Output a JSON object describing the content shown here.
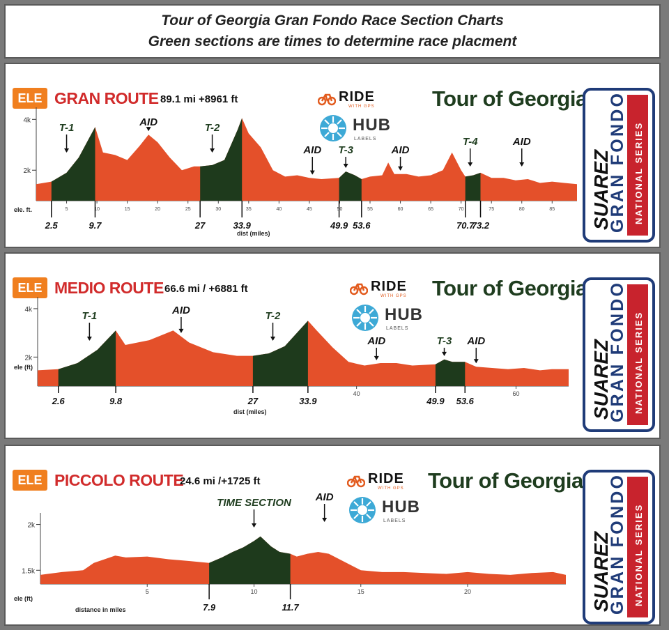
{
  "header": {
    "line1": "Tour of Georgia Gran Fondo Race Section Charts",
    "line2": "Green sections are times to determine race placment"
  },
  "colors": {
    "profile_fill": "#e4502a",
    "timed_fill": "#1e3a1c",
    "badge": "#f07f1f",
    "route_name": "#d12b2b",
    "tour_title": "#1f3d1f",
    "logo_blue": "#1f3b78",
    "logo_red": "#c8232d"
  },
  "branding": {
    "ride": "RIDE",
    "with_gps": "WITH GPS",
    "hub": "HUB",
    "labels": "LABELS",
    "logo_line1": "SUAREZ",
    "logo_line2": "GRAN FONDO",
    "logo_line3": "NATIONAL SERIES"
  },
  "chart_data": [
    {
      "type": "area",
      "title": "GRAN ROUTE",
      "badge": "ELE",
      "stats": "89.1 mi +8961 ft",
      "tour": "Tour of Georgia",
      "xlabel": "dist (miles)",
      "ylabel": "ele. ft.",
      "xlim": [
        0,
        89.1
      ],
      "ylim": [
        800,
        4200
      ],
      "yticks": [
        {
          "v": 2000,
          "t": "2k"
        },
        {
          "v": 4000,
          "t": "4k"
        }
      ],
      "xticks": [
        5,
        10,
        15,
        20,
        25,
        30,
        35,
        40,
        45,
        50,
        55,
        60,
        65,
        70,
        75,
        80,
        85
      ],
      "profile": {
        "x": [
          0,
          2.5,
          5,
          7,
          9.7,
          11,
          13,
          15,
          17,
          18.5,
          20,
          22,
          24,
          26,
          27,
          29,
          31,
          33.2,
          33.9,
          35,
          37,
          39,
          41,
          43,
          45,
          47,
          49.9,
          51,
          52.5,
          53.6,
          55,
          57,
          58,
          59,
          61,
          63,
          65,
          67,
          68.5,
          70,
          70.7,
          72,
          73.2,
          75,
          77,
          79,
          81,
          83,
          85,
          87,
          89.1
        ],
        "y": [
          1450,
          1550,
          1900,
          2500,
          3700,
          2700,
          2600,
          2400,
          2950,
          3400,
          3100,
          2500,
          2000,
          2150,
          2150,
          2200,
          2400,
          3600,
          4050,
          3450,
          2900,
          2000,
          1750,
          1800,
          1700,
          1650,
          1700,
          1950,
          1800,
          1650,
          1750,
          1800,
          2300,
          1850,
          1850,
          1750,
          1800,
          2000,
          2700,
          2000,
          1750,
          1800,
          1900,
          1700,
          1700,
          1600,
          1650,
          1500,
          1550,
          1500,
          1450
        ]
      },
      "timed_sections": [
        [
          2.5,
          9.7
        ],
        [
          27,
          33.9
        ],
        [
          49.9,
          53.6
        ],
        [
          70.7,
          73.2
        ]
      ],
      "section_labels": [
        "2.5",
        "9.7",
        "27",
        "33.9",
        "49.9",
        "53.6",
        "70.7",
        "73.2"
      ],
      "annotations": [
        {
          "text": "T-1",
          "x": 5,
          "kind": "T"
        },
        {
          "text": "AID",
          "x": 18.5,
          "kind": "AID"
        },
        {
          "text": "T-2",
          "x": 29,
          "kind": "T"
        },
        {
          "text": "AID",
          "x": 45.5,
          "kind": "AID"
        },
        {
          "text": "T-3",
          "x": 51,
          "kind": "T"
        },
        {
          "text": "AID",
          "x": 60,
          "kind": "AID"
        },
        {
          "text": "T-4",
          "x": 71.5,
          "kind": "T"
        },
        {
          "text": "AID",
          "x": 80,
          "kind": "AID"
        }
      ]
    },
    {
      "type": "area",
      "title": "MEDIO ROUTE",
      "badge": "ELE",
      "stats": "66.6 mi / +6881 ft",
      "tour": "Tour of Georgia",
      "xlabel": "dist (miles)",
      "ylabel": "ele (ft)",
      "xlim": [
        0,
        66.6
      ],
      "ylim": [
        800,
        4200
      ],
      "yticks": [
        {
          "v": 2000,
          "t": "2k"
        },
        {
          "v": 4000,
          "t": "4k"
        }
      ],
      "xticks": [
        40,
        60
      ],
      "profile": {
        "x": [
          0,
          2.6,
          5,
          7.5,
          9.8,
          11,
          14,
          17,
          19,
          22,
          25,
          27,
          29,
          31,
          33.9,
          35,
          37,
          39,
          41,
          43,
          45,
          47,
          49.9,
          51,
          52,
          53.6,
          55,
          57,
          59,
          61,
          63,
          64.5,
          66.6
        ],
        "y": [
          1450,
          1500,
          1750,
          2300,
          3100,
          2500,
          2700,
          3100,
          2600,
          2200,
          2050,
          2050,
          2150,
          2450,
          3500,
          3100,
          2400,
          1800,
          1650,
          1750,
          1750,
          1650,
          1700,
          1900,
          1800,
          1800,
          1600,
          1550,
          1500,
          1550,
          1450,
          1500,
          1500
        ]
      },
      "timed_sections": [
        [
          2.6,
          9.8
        ],
        [
          27,
          33.9
        ],
        [
          49.9,
          53.6
        ]
      ],
      "section_labels": [
        "2.6",
        "9.8",
        "27",
        "33.9",
        "49.9",
        "53.6"
      ],
      "annotations": [
        {
          "text": "T-1",
          "x": 6.5,
          "kind": "T"
        },
        {
          "text": "AID",
          "x": 18,
          "kind": "AID"
        },
        {
          "text": "T-2",
          "x": 29.5,
          "kind": "T"
        },
        {
          "text": "AID",
          "x": 42.5,
          "kind": "AID"
        },
        {
          "text": "T-3",
          "x": 51,
          "kind": "T"
        },
        {
          "text": "AID",
          "x": 55,
          "kind": "AID"
        }
      ]
    },
    {
      "type": "area",
      "title": "PICCOLO ROUTE",
      "badge": "ELE",
      "stats": "24.6 mi /+1725 ft",
      "tour": "Tour of Georgia",
      "xlabel": "distance in miles",
      "ylabel": "ele (ft)",
      "xlim": [
        0,
        24.6
      ],
      "ylim": [
        1350,
        2050
      ],
      "yticks": [
        {
          "v": 1500,
          "t": "1.5k"
        },
        {
          "v": 2000,
          "t": "2k"
        }
      ],
      "xticks": [
        5,
        10,
        15,
        20
      ],
      "profile": {
        "x": [
          0,
          1,
          2,
          2.5,
          3,
          3.5,
          4,
          5,
          6,
          7,
          7.9,
          8.5,
          9,
          9.5,
          10,
          10.3,
          10.8,
          11.2,
          11.7,
          12,
          12.5,
          13,
          13.5,
          14,
          14.5,
          15,
          16,
          17,
          18,
          19,
          20,
          21,
          22,
          23,
          24,
          24.6
        ],
        "y": [
          1450,
          1480,
          1500,
          1580,
          1620,
          1660,
          1640,
          1650,
          1620,
          1600,
          1580,
          1640,
          1700,
          1750,
          1820,
          1870,
          1760,
          1700,
          1680,
          1650,
          1680,
          1700,
          1680,
          1620,
          1560,
          1500,
          1480,
          1480,
          1470,
          1460,
          1480,
          1460,
          1450,
          1470,
          1480,
          1450
        ]
      },
      "timed_sections": [
        [
          7.9,
          11.7
        ]
      ],
      "section_labels": [
        "7.9",
        "11.7"
      ],
      "annotations": [
        {
          "text": "TIME SECTION",
          "x": 10,
          "kind": "T"
        },
        {
          "text": "AID",
          "x": 13.3,
          "kind": "AID"
        }
      ]
    }
  ]
}
